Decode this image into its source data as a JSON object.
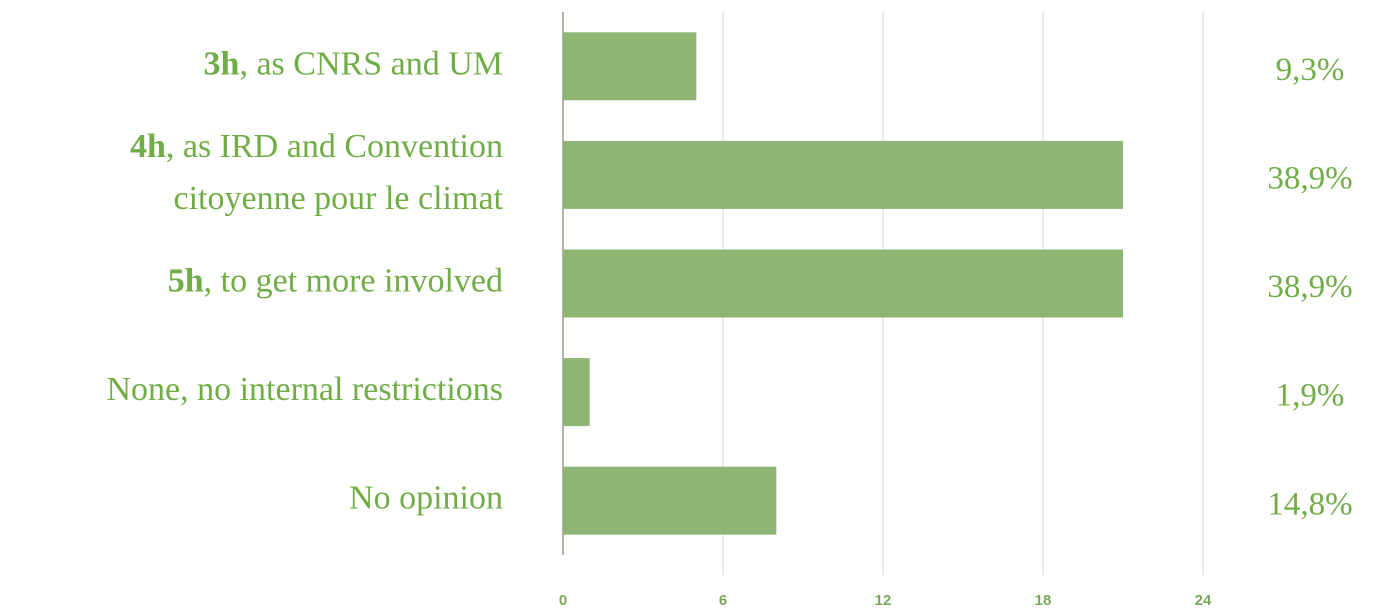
{
  "chart_data": {
    "type": "barh",
    "categories": [
      "3h, as CNRS and UM",
      "4h, as IRD and Convention citoyenne pour le climat",
      "5h, to get more involved",
      "None, no internal restrictions",
      "No opinion"
    ],
    "values": [
      5,
      21,
      21,
      1,
      8
    ],
    "share_labels": [
      "9,3%",
      "38,9%",
      "38,9%",
      "1,9%",
      "14,8%"
    ],
    "color": "#8fb574",
    "xlim": [
      0,
      24
    ],
    "xticks": [
      0,
      6,
      12,
      18,
      24
    ],
    "grid": true
  }
}
